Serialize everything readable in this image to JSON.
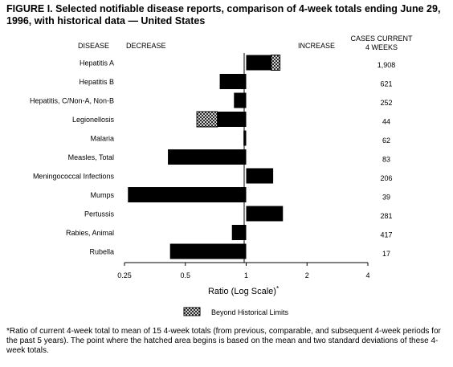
{
  "figure": {
    "title": "FIGURE I. Selected notifiable disease reports, comparison of 4-week totals ending June 29, 1996, with historical data — United States",
    "footnote": "*Ratio of current 4-week total to mean of 15 4-week totals (from previous, comparable, and subsequent 4-week periods for the past 5 years). The point where the hatched area begins is based on the mean and two standard deviations of these 4-week totals."
  },
  "chart_data": {
    "type": "bar",
    "orientation": "horizontal",
    "x_scale": "log2",
    "xlim": [
      0.25,
      4
    ],
    "reference_value": 1,
    "column_headers": {
      "disease": "DISEASE",
      "decrease": "DECREASE",
      "increase": "INCREASE",
      "cases_line1": "CASES CURRENT",
      "cases_line2": "4 WEEKS"
    },
    "categories": [
      "Hepatitis A",
      "Hepatitis B",
      "Hepatitis, C/Non-A, Non-B",
      "Legionellosis",
      "Malaria",
      "Measles, Total",
      "Meningococcal Infections",
      "Mumps",
      "Pertussis",
      "Rabies, Animal",
      "Rubella"
    ],
    "ratios": [
      1.47,
      0.74,
      0.87,
      0.57,
      0.97,
      0.41,
      1.36,
      0.26,
      1.52,
      0.85,
      0.42
    ],
    "hatch_start": [
      1.33,
      null,
      null,
      0.72,
      null,
      null,
      null,
      null,
      null,
      null,
      null
    ],
    "cases_current_4_weeks": [
      "1,908",
      "621",
      "252",
      "44",
      "62",
      "83",
      "206",
      "39",
      "281",
      "417",
      "17"
    ],
    "x_ticks": [
      0.25,
      0.5,
      1,
      2,
      4
    ],
    "x_tick_labels": [
      "0.25",
      "0.5",
      "1",
      "2",
      "4"
    ],
    "xlabel": "Ratio (Log Scale)",
    "xlabel_marker": "*",
    "legend": {
      "label": "Beyond Historical Limits",
      "position": "bottom-center"
    },
    "colors": {
      "bar": "#000000",
      "hatch": "#000000",
      "background": "#ffffff"
    }
  }
}
